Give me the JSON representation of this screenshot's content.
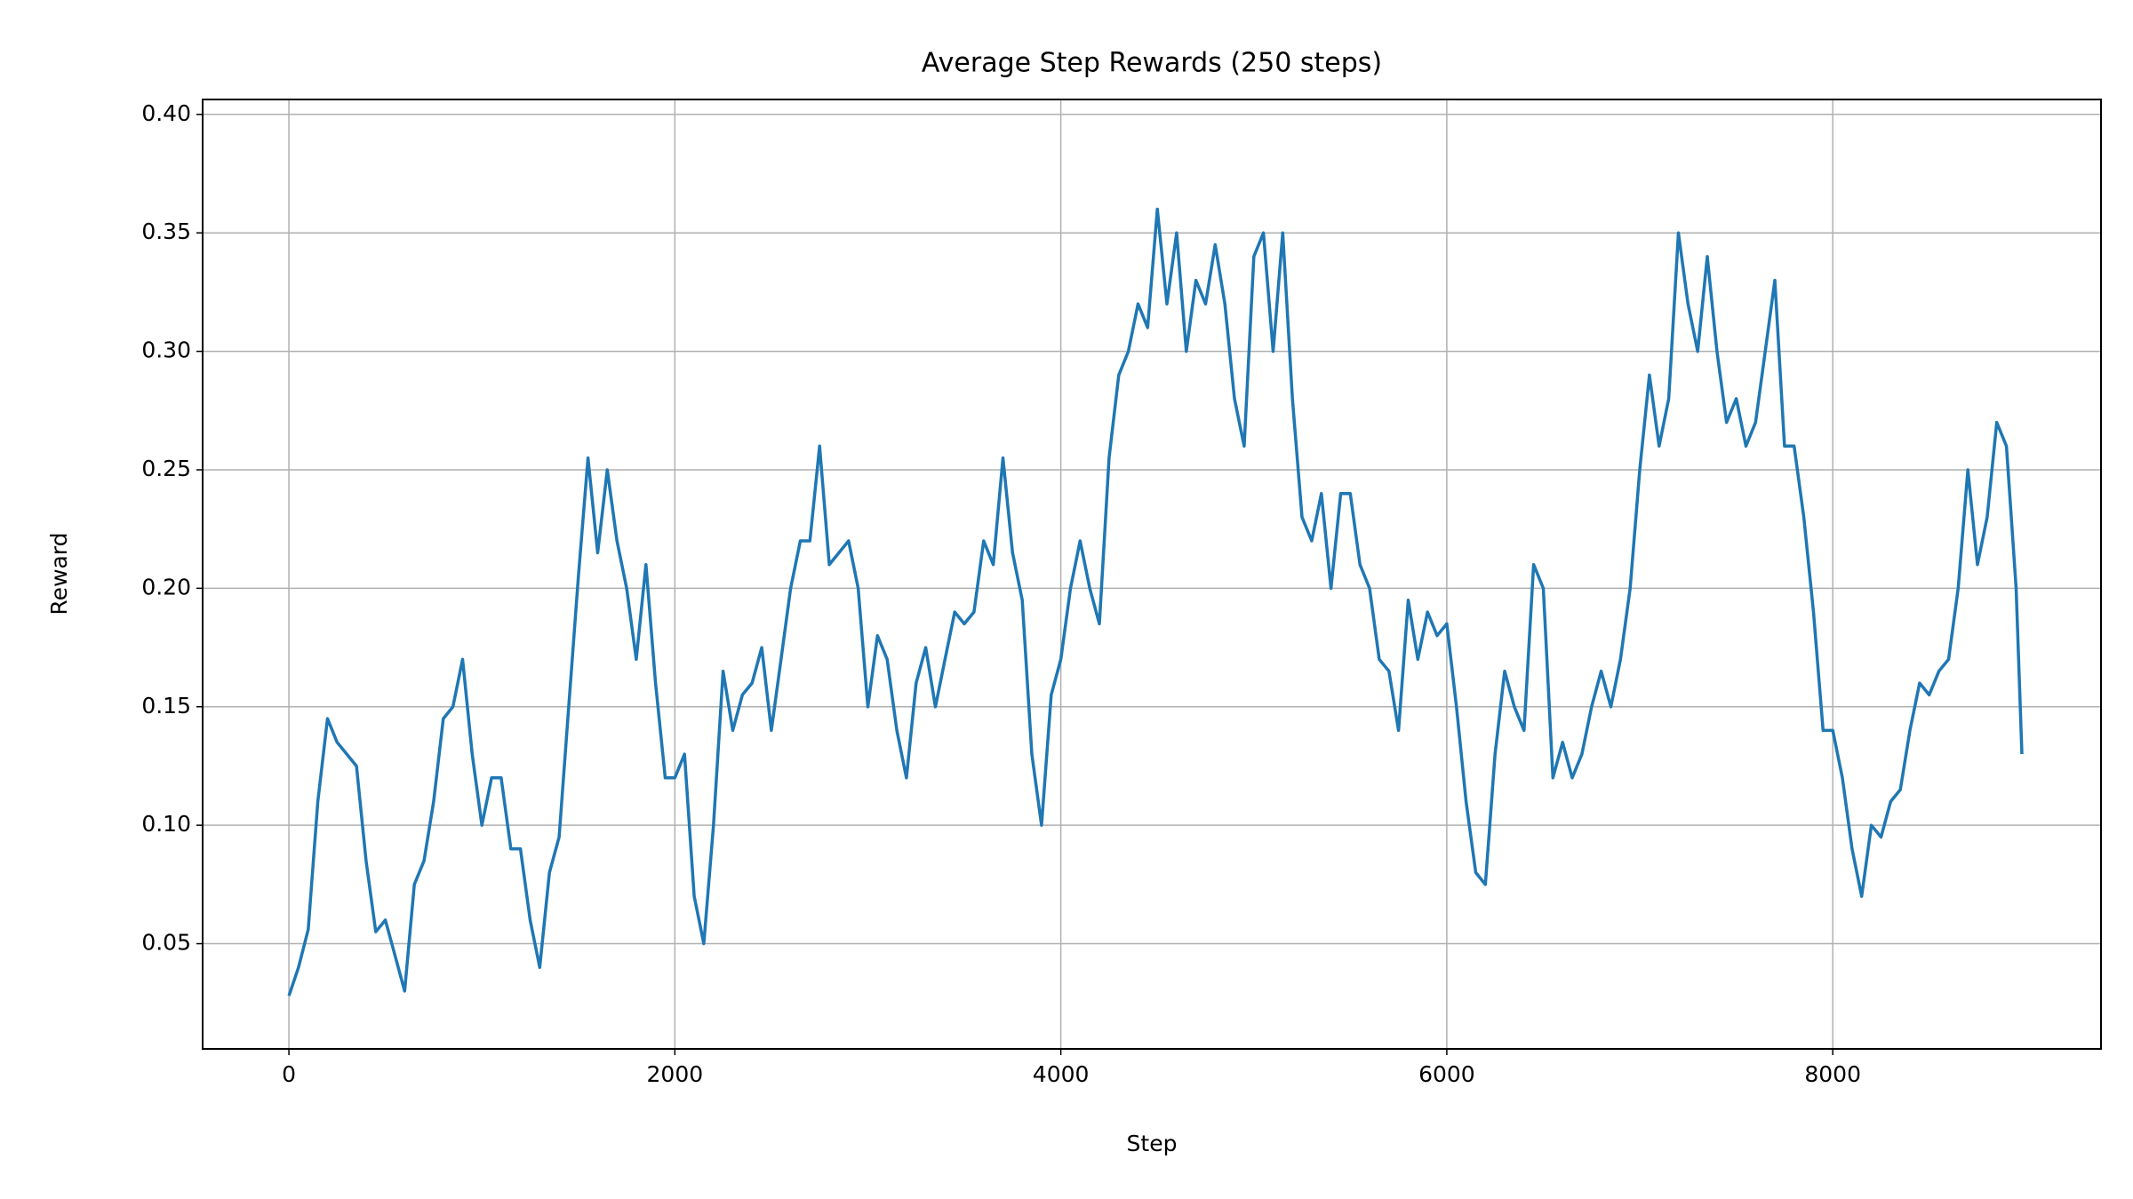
{
  "chart_data": {
    "type": "line",
    "title": "Average Step Rewards (250 steps)",
    "x_label": "Step",
    "y_label": "Reward",
    "xlim": [
      -447,
      9390
    ],
    "ylim": [
      0.0056,
      0.4063
    ],
    "xticks": [
      0,
      2000,
      4000,
      6000,
      8000
    ],
    "yticks": [
      0.05,
      {
        "value": 0.1,
        "label": "0.10"
      },
      0.15,
      {
        "value": 0.2,
        "label": "0.20"
      },
      0.25,
      {
        "value": 0.3,
        "label": "0.30"
      },
      0.35,
      {
        "value": 0.4,
        "label": "0.40"
      }
    ],
    "grid": true,
    "series": [
      {
        "name": "Reward",
        "color": "#1f77b4",
        "x": [
          0,
          50,
          100,
          150,
          200,
          250,
          300,
          350,
          400,
          450,
          500,
          550,
          600,
          650,
          700,
          750,
          800,
          850,
          900,
          950,
          1000,
          1050,
          1100,
          1150,
          1200,
          1250,
          1300,
          1350,
          1400,
          1450,
          1500,
          1550,
          1600,
          1650,
          1700,
          1750,
          1800,
          1850,
          1900,
          1950,
          2000,
          2050,
          2100,
          2150,
          2200,
          2250,
          2300,
          2350,
          2400,
          2450,
          2500,
          2550,
          2600,
          2650,
          2700,
          2750,
          2800,
          2850,
          2900,
          2950,
          3000,
          3050,
          3100,
          3150,
          3200,
          3250,
          3300,
          3350,
          3400,
          3450,
          3500,
          3550,
          3600,
          3650,
          3700,
          3750,
          3800,
          3850,
          3900,
          3950,
          4000,
          4050,
          4100,
          4150,
          4200,
          4250,
          4300,
          4350,
          4400,
          4450,
          4500,
          4550,
          4600,
          4650,
          4700,
          4750,
          4800,
          4850,
          4900,
          4950,
          5000,
          5050,
          5100,
          5150,
          5200,
          5250,
          5300,
          5350,
          5400,
          5450,
          5500,
          5550,
          5600,
          5650,
          5700,
          5750,
          5800,
          5850,
          5900,
          5950,
          6000,
          6050,
          6100,
          6150,
          6200,
          6250,
          6300,
          6350,
          6400,
          6450,
          6500,
          6550,
          6600,
          6650,
          6700,
          6750,
          6800,
          6850,
          6900,
          6950,
          7000,
          7050,
          7100,
          7150,
          7200,
          7250,
          7300,
          7350,
          7400,
          7450,
          7500,
          7550,
          7600,
          7650,
          7700,
          7750,
          7800,
          7850,
          7900,
          7950,
          8000,
          8050,
          8100,
          8150,
          8200,
          8250,
          8300,
          8350,
          8400,
          8450,
          8500,
          8550,
          8600,
          8650,
          8700,
          8750,
          8800,
          8850,
          8900,
          8950,
          8980
        ],
        "values": [
          0.028,
          0.04,
          0.056,
          0.11,
          0.145,
          0.135,
          0.13,
          0.125,
          0.085,
          0.055,
          0.06,
          0.045,
          0.03,
          0.075,
          0.085,
          0.11,
          0.145,
          0.15,
          0.17,
          0.13,
          0.1,
          0.12,
          0.12,
          0.09,
          0.09,
          0.06,
          0.04,
          0.08,
          0.095,
          0.15,
          0.205,
          0.255,
          0.215,
          0.25,
          0.22,
          0.2,
          0.17,
          0.21,
          0.16,
          0.12,
          0.12,
          0.13,
          0.07,
          0.05,
          0.1,
          0.165,
          0.14,
          0.155,
          0.16,
          0.175,
          0.14,
          0.17,
          0.2,
          0.22,
          0.22,
          0.26,
          0.21,
          0.215,
          0.22,
          0.2,
          0.15,
          0.18,
          0.17,
          0.14,
          0.12,
          0.16,
          0.175,
          0.15,
          0.17,
          0.19,
          0.185,
          0.19,
          0.22,
          0.21,
          0.255,
          0.215,
          0.195,
          0.13,
          0.1,
          0.155,
          0.17,
          0.2,
          0.22,
          0.2,
          0.185,
          0.255,
          0.29,
          0.3,
          0.32,
          0.31,
          0.36,
          0.32,
          0.35,
          0.3,
          0.33,
          0.32,
          0.345,
          0.32,
          0.28,
          0.26,
          0.34,
          0.35,
          0.3,
          0.35,
          0.28,
          0.23,
          0.22,
          0.24,
          0.2,
          0.24,
          0.24,
          0.21,
          0.2,
          0.17,
          0.165,
          0.14,
          0.195,
          0.17,
          0.19,
          0.18,
          0.185,
          0.15,
          0.11,
          0.08,
          0.075,
          0.13,
          0.165,
          0.15,
          0.14,
          0.21,
          0.2,
          0.12,
          0.135,
          0.12,
          0.13,
          0.15,
          0.165,
          0.15,
          0.17,
          0.2,
          0.25,
          0.29,
          0.26,
          0.28,
          0.35,
          0.32,
          0.3,
          0.34,
          0.3,
          0.27,
          0.28,
          0.26,
          0.27,
          0.3,
          0.33,
          0.26,
          0.26,
          0.23,
          0.19,
          0.14,
          0.14,
          0.12,
          0.09,
          0.07,
          0.1,
          0.095,
          0.11,
          0.115,
          0.14,
          0.16,
          0.155,
          0.165,
          0.17,
          0.2,
          0.25,
          0.21,
          0.23,
          0.27,
          0.26,
          0.2,
          0.13
        ]
      }
    ]
  }
}
